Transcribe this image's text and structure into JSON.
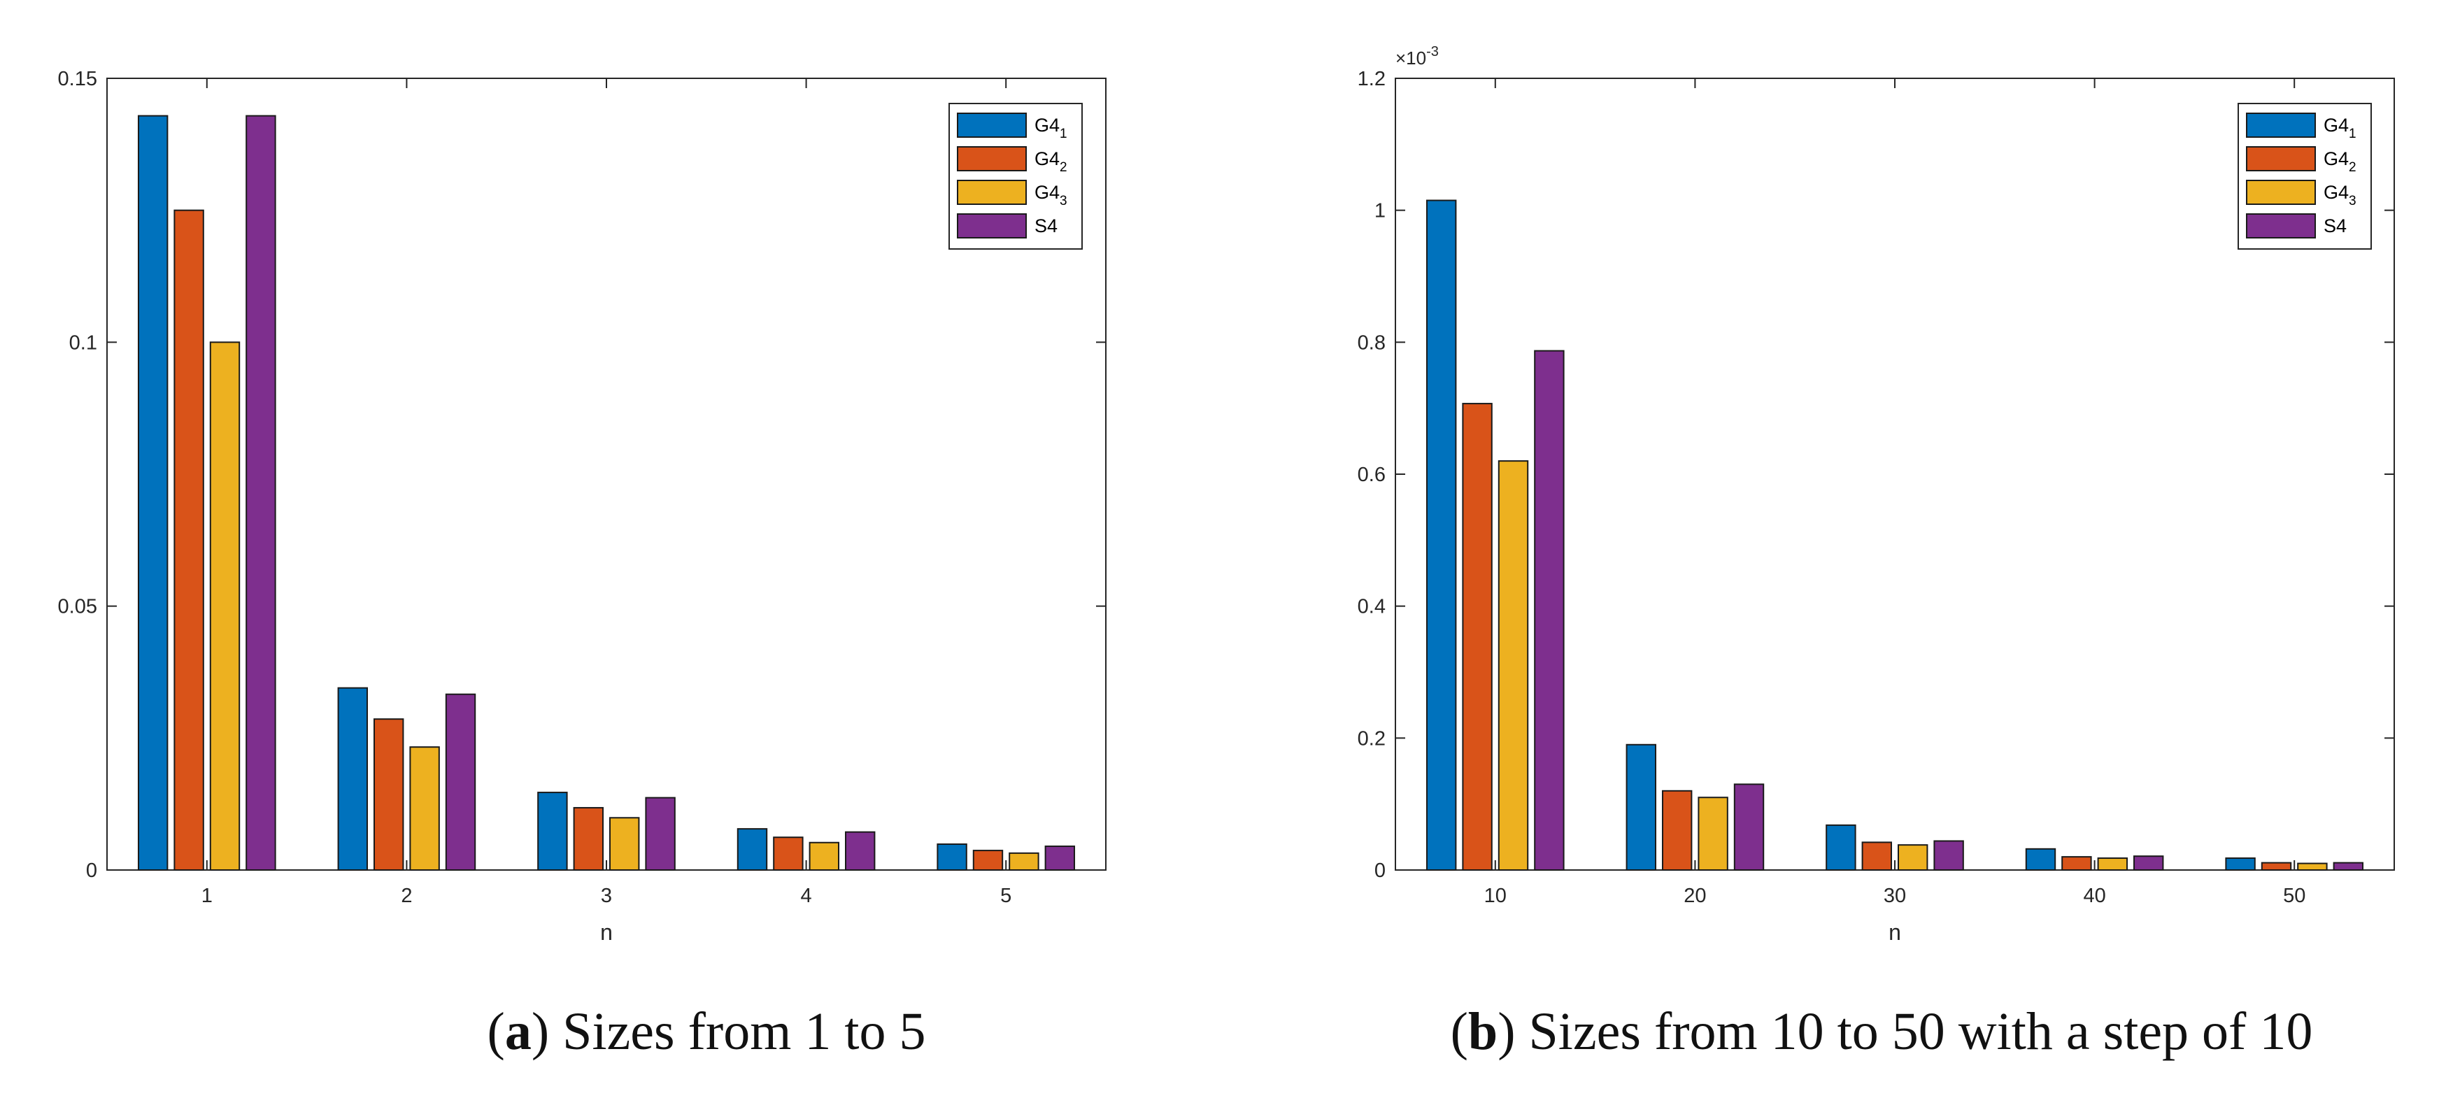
{
  "figure": {
    "captions": [
      {
        "letter": "a",
        "text": " Sizes from 1 to 5"
      },
      {
        "letter": "b",
        "text": " Sizes from 10 to 50 with a step of 10"
      }
    ]
  },
  "colors": {
    "G4_1": "#0072BD",
    "G4_2": "#D95319",
    "G4_3": "#EDB120",
    "S4": "#7E2F8E"
  },
  "chart_data": [
    {
      "type": "bar",
      "title": "",
      "xlabel": "n",
      "ylabel": "",
      "categories": [
        "1",
        "2",
        "3",
        "4",
        "5"
      ],
      "ylim": [
        0,
        0.15
      ],
      "yticks": [
        0,
        0.05,
        0.1,
        0.15
      ],
      "ytick_labels": [
        "0",
        "0.05",
        "0.1",
        "0.15"
      ],
      "exponent_label": "",
      "legend_position": "top-right",
      "grid": false,
      "series": [
        {
          "name": "G4",
          "subscript": "1",
          "color": "#0072BD",
          "values": [
            0.1429,
            0.0345,
            0.0147,
            0.0078,
            0.0049
          ]
        },
        {
          "name": "G4",
          "subscript": "2",
          "color": "#D95319",
          "values": [
            0.125,
            0.0286,
            0.0118,
            0.0062,
            0.0037
          ]
        },
        {
          "name": "G4",
          "subscript": "3",
          "color": "#EDB120",
          "values": [
            0.1,
            0.0233,
            0.0099,
            0.0052,
            0.0032
          ]
        },
        {
          "name": "S4",
          "subscript": "",
          "color": "#7E2F8E",
          "values": [
            0.1429,
            0.0333,
            0.0137,
            0.0072,
            0.0045
          ]
        }
      ]
    },
    {
      "type": "bar",
      "title": "",
      "xlabel": "n",
      "ylabel": "",
      "categories": [
        "10",
        "20",
        "30",
        "40",
        "50"
      ],
      "ylim": [
        0,
        1.2
      ],
      "yticks": [
        0,
        0.2,
        0.4,
        0.6,
        0.8,
        1.0,
        1.2
      ],
      "ytick_labels": [
        "0",
        "0.2",
        "0.4",
        "0.6",
        "0.8",
        "1",
        "1.2"
      ],
      "exponent_label": "×10",
      "exponent_power": "-3",
      "value_scale": "×10^-3",
      "legend_position": "top-right",
      "grid": false,
      "series": [
        {
          "name": "G4",
          "subscript": "1",
          "color": "#0072BD",
          "values": [
            1.015,
            0.19,
            0.068,
            0.032,
            0.018
          ]
        },
        {
          "name": "G4",
          "subscript": "2",
          "color": "#D95319",
          "values": [
            0.707,
            0.12,
            0.042,
            0.02,
            0.011
          ]
        },
        {
          "name": "G4",
          "subscript": "3",
          "color": "#EDB120",
          "values": [
            0.62,
            0.11,
            0.038,
            0.018,
            0.01
          ]
        },
        {
          "name": "S4",
          "subscript": "",
          "color": "#7E2F8E",
          "values": [
            0.787,
            0.13,
            0.044,
            0.021,
            0.011
          ]
        }
      ]
    }
  ]
}
